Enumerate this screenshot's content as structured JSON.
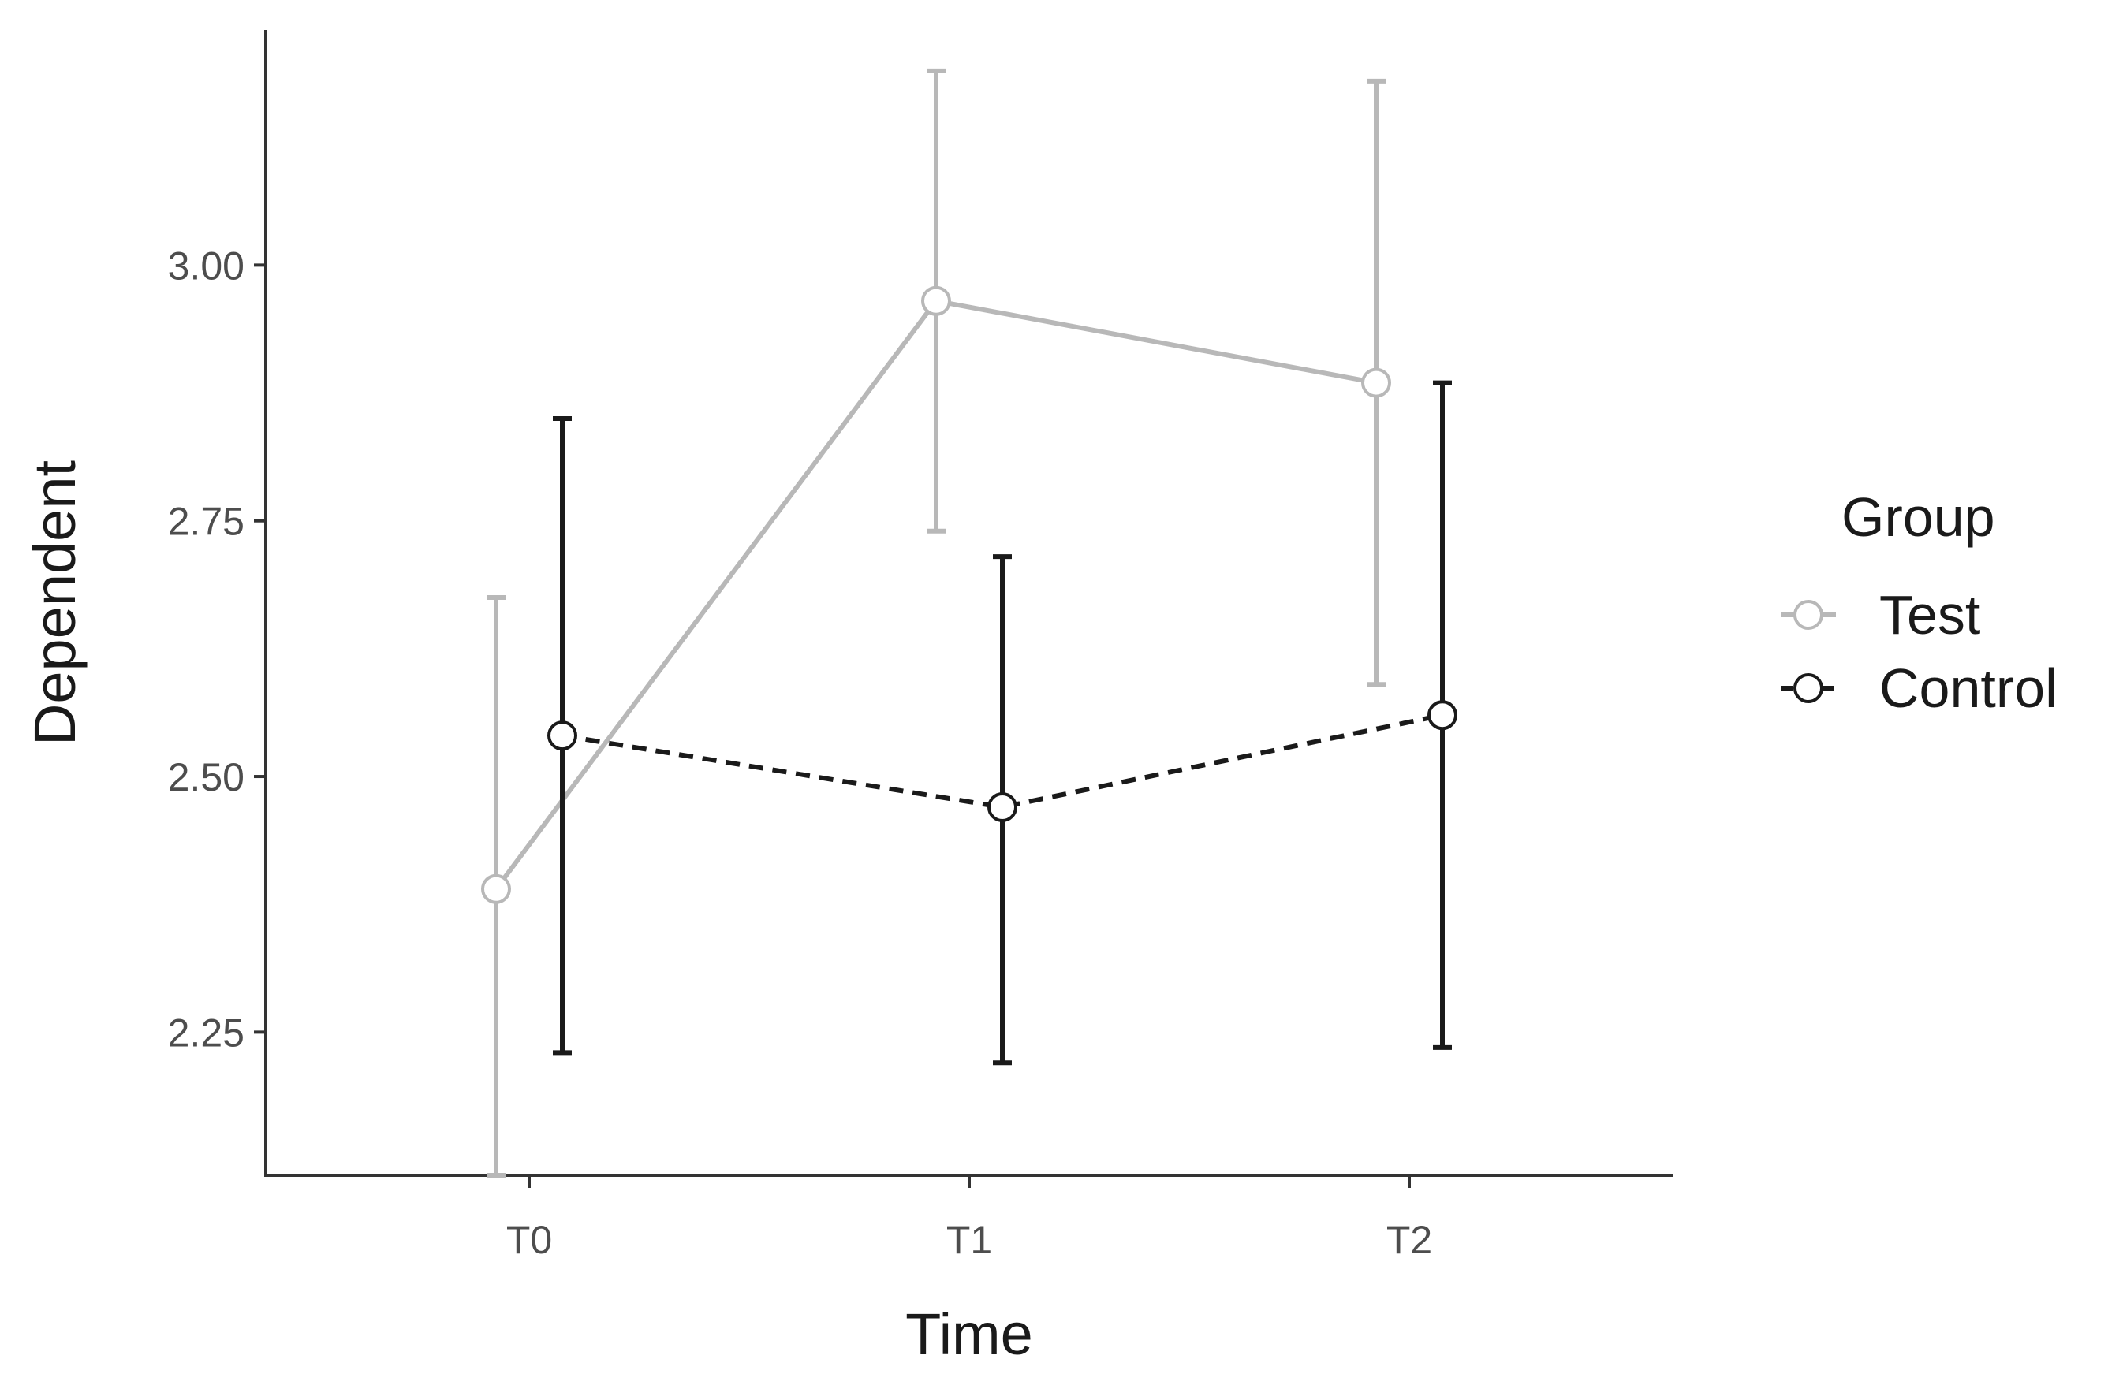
{
  "chart_data": {
    "type": "line",
    "title": "",
    "xlabel": "Time",
    "ylabel": "Dependent",
    "categories": [
      "T0",
      "T1",
      "T2"
    ],
    "ylim": [
      2.11,
      3.23
    ],
    "yticks": [
      2.25,
      2.5,
      2.75,
      3.0
    ],
    "ytick_labels": [
      "2.25",
      "2.50",
      "2.75",
      "3.00"
    ],
    "grid": false,
    "legend": {
      "title": "Group",
      "placement": "right"
    },
    "series": [
      {
        "name": "Test",
        "color": "#b8b8b8",
        "line_style": "solid",
        "marker": "open-circle",
        "values": [
          2.39,
          2.965,
          2.885
        ],
        "error_low": [
          2.11,
          2.74,
          2.59
        ],
        "error_high": [
          2.675,
          3.19,
          3.18
        ]
      },
      {
        "name": "Control",
        "color": "#1a1a1a",
        "line_style": "dashed",
        "marker": "open-circle",
        "values": [
          2.54,
          2.47,
          2.56
        ],
        "error_low": [
          2.23,
          2.22,
          2.235
        ],
        "error_high": [
          2.85,
          2.715,
          2.885
        ]
      }
    ]
  }
}
